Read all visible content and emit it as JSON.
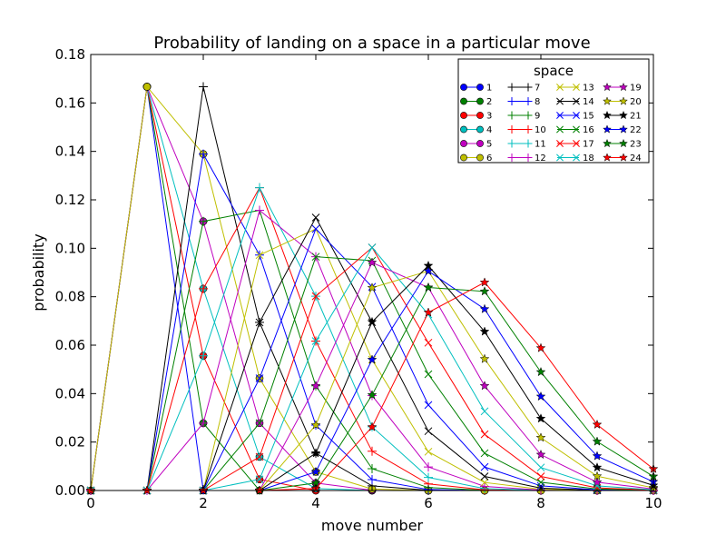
{
  "chart_data": {
    "type": "line",
    "title": "Probability of landing on a space in a particular move",
    "xlabel": "move number",
    "ylabel": "probability",
    "xlim": [
      0,
      10
    ],
    "ylim": [
      0,
      0.18
    ],
    "x_ticks": [
      "0",
      "2",
      "4",
      "6",
      "8",
      "10"
    ],
    "y_ticks": [
      "0.00",
      "0.02",
      "0.04",
      "0.06",
      "0.08",
      "0.10",
      "0.12",
      "0.14",
      "0.16",
      "0.18"
    ],
    "grid": false,
    "legend": {
      "title": "space",
      "placement": "top-right",
      "columns": 4
    },
    "x": [
      0,
      1,
      2,
      3,
      4,
      5,
      6,
      7,
      8,
      9,
      10
    ],
    "series": [
      {
        "name": "1",
        "color": "#0000ff",
        "marker": "circle",
        "values": [
          0,
          0.1667,
          0,
          0,
          0,
          0,
          0,
          0,
          0,
          0,
          0
        ]
      },
      {
        "name": "2",
        "color": "#008000",
        "marker": "circle",
        "values": [
          0,
          0.1667,
          0.0278,
          0,
          0,
          0,
          0,
          0,
          0,
          0,
          0
        ]
      },
      {
        "name": "3",
        "color": "#ff0000",
        "marker": "circle",
        "values": [
          0,
          0.1667,
          0.0556,
          0.0046,
          0,
          0,
          0,
          0,
          0,
          0,
          0
        ]
      },
      {
        "name": "4",
        "color": "#00bfbf",
        "marker": "circle",
        "values": [
          0,
          0.1667,
          0.0833,
          0.0139,
          0.0008,
          0,
          0,
          0,
          0,
          0,
          0
        ]
      },
      {
        "name": "5",
        "color": "#bf00bf",
        "marker": "circle",
        "values": [
          0,
          0.1667,
          0.1111,
          0.0278,
          0.0031,
          0.0001,
          0,
          0,
          0,
          0,
          0
        ]
      },
      {
        "name": "6",
        "color": "#bfbf00",
        "marker": "circle",
        "values": [
          0,
          0.1667,
          0.1389,
          0.0463,
          0.0077,
          0.0006,
          0,
          0,
          0,
          0,
          0
        ]
      },
      {
        "name": "7",
        "color": "#000000",
        "marker": "plus",
        "values": [
          0,
          0,
          0.1667,
          0.0694,
          0.0154,
          0.0019,
          0.0001,
          0,
          0,
          0,
          0
        ]
      },
      {
        "name": "8",
        "color": "#0000ff",
        "marker": "plus",
        "values": [
          0,
          0,
          0.1389,
          0.0972,
          0.027,
          0.0045,
          0.0004,
          0,
          0,
          0,
          0
        ]
      },
      {
        "name": "9",
        "color": "#008000",
        "marker": "plus",
        "values": [
          0,
          0,
          0.1111,
          0.1157,
          0.0432,
          0.009,
          0.0012,
          0.0001,
          0,
          0,
          0
        ]
      },
      {
        "name": "10",
        "color": "#ff0000",
        "marker": "plus",
        "values": [
          0,
          0,
          0.0833,
          0.125,
          0.0617,
          0.0162,
          0.0027,
          0.0003,
          0,
          0,
          0
        ]
      },
      {
        "name": "11",
        "color": "#00bfbf",
        "marker": "plus",
        "values": [
          0,
          0,
          0.0556,
          0.125,
          0.0802,
          0.0263,
          0.0054,
          0.0008,
          0.0001,
          0,
          0
        ]
      },
      {
        "name": "12",
        "color": "#bf00bf",
        "marker": "plus",
        "values": [
          0,
          0,
          0.0278,
          0.1157,
          0.0965,
          0.0392,
          0.0097,
          0.0017,
          0.0002,
          0,
          0
        ]
      },
      {
        "name": "13",
        "color": "#bfbf00",
        "marker": "x",
        "values": [
          0,
          0,
          0,
          0.0972,
          0.108,
          0.054,
          0.016,
          0.0033,
          0.0005,
          0.0001,
          0
        ]
      },
      {
        "name": "14",
        "color": "#000000",
        "marker": "x",
        "values": [
          0,
          0,
          0,
          0.0694,
          0.1127,
          0.0695,
          0.0245,
          0.0058,
          0.001,
          0.0001,
          0
        ]
      },
      {
        "name": "15",
        "color": "#0000ff",
        "marker": "x",
        "values": [
          0,
          0,
          0,
          0.0463,
          0.108,
          0.0841,
          0.0353,
          0.0097,
          0.0019,
          0.0003,
          0
        ]
      },
      {
        "name": "16",
        "color": "#008000",
        "marker": "x",
        "values": [
          0,
          0,
          0,
          0.0278,
          0.0965,
          0.0949,
          0.048,
          0.0154,
          0.0034,
          0.0006,
          0.0001
        ]
      },
      {
        "name": "17",
        "color": "#ff0000",
        "marker": "x",
        "values": [
          0,
          0,
          0,
          0.0139,
          0.0802,
          0.1003,
          0.061,
          0.0232,
          0.0058,
          0.0011,
          0.0002
        ]
      },
      {
        "name": "18",
        "color": "#00bfbf",
        "marker": "x",
        "values": [
          0,
          0,
          0,
          0.0046,
          0.0617,
          0.1003,
          0.0727,
          0.0327,
          0.0095,
          0.0019,
          0.0003
        ]
      },
      {
        "name": "19",
        "color": "#bf00bf",
        "marker": "star",
        "values": [
          0,
          0,
          0,
          0,
          0.0432,
          0.0941,
          0.0838,
          0.0432,
          0.0148,
          0.0034,
          0.0006
        ]
      },
      {
        "name": "20",
        "color": "#bfbf00",
        "marker": "star",
        "values": [
          0,
          0,
          0,
          0,
          0.027,
          0.0837,
          0.0906,
          0.0543,
          0.0218,
          0.0059,
          0.0011
        ]
      },
      {
        "name": "21",
        "color": "#000000",
        "marker": "star",
        "values": [
          0,
          0,
          0,
          0,
          0.0154,
          0.0696,
          0.0928,
          0.0656,
          0.0297,
          0.0095,
          0.0021
        ]
      },
      {
        "name": "22",
        "color": "#0000ff",
        "marker": "star",
        "values": [
          0,
          0,
          0,
          0,
          0.0077,
          0.054,
          0.0906,
          0.0749,
          0.0388,
          0.0142,
          0.0036
        ]
      },
      {
        "name": "23",
        "color": "#008000",
        "marker": "star",
        "values": [
          0,
          0,
          0,
          0,
          0.0031,
          0.0394,
          0.0838,
          0.0822,
          0.0489,
          0.0202,
          0.0058
        ]
      },
      {
        "name": "24",
        "color": "#ff0000",
        "marker": "star",
        "values": [
          0,
          0,
          0,
          0,
          0.0008,
          0.0262,
          0.0735,
          0.0859,
          0.0588,
          0.0272,
          0.0089
        ]
      }
    ]
  }
}
